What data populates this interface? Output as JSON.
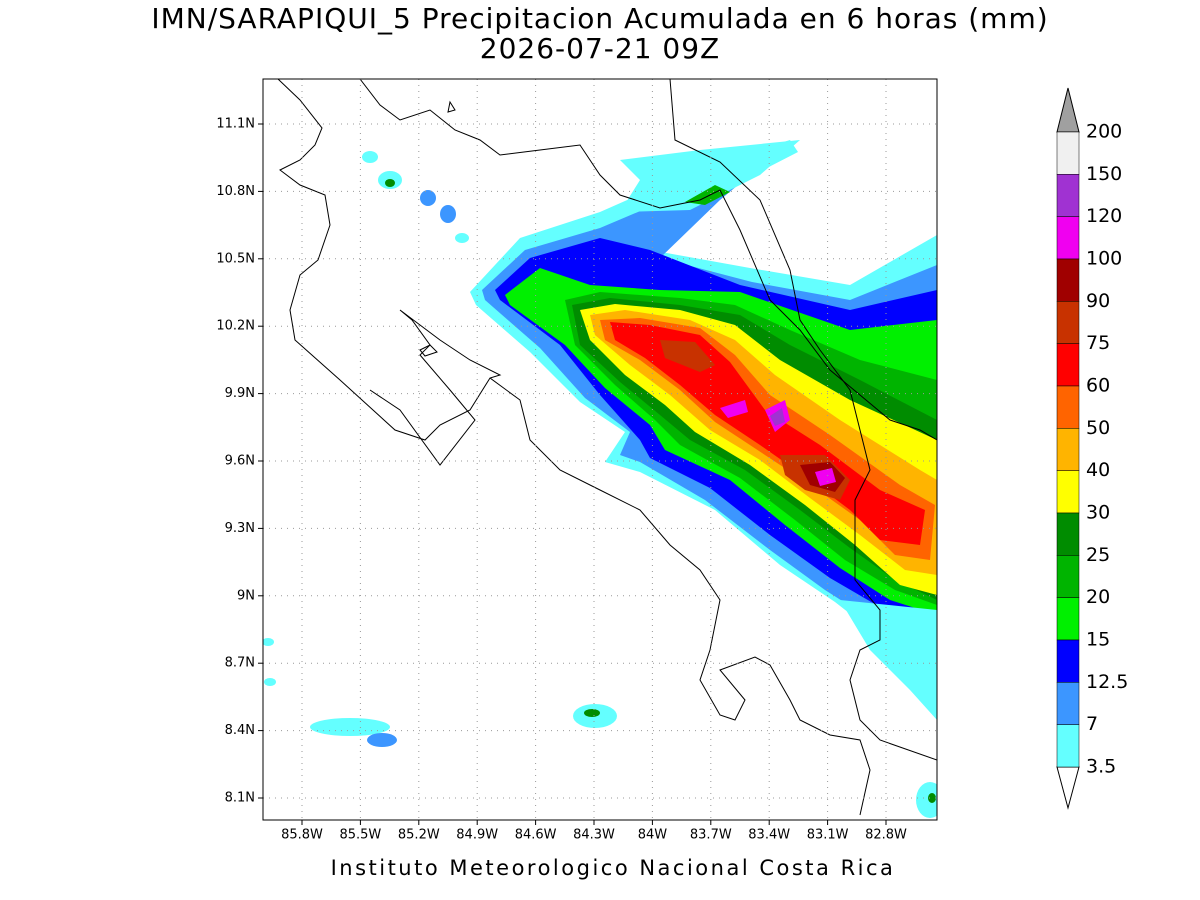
{
  "header": {
    "title": "IMN/SARAPIQUI_5 Precipitacion Acumulada en 6 horas (mm)",
    "subtitle": "2026-07-21 09Z"
  },
  "map": {
    "lat_labels": [
      "11.1N",
      "10.8N",
      "10.5N",
      "10.2N",
      "9.9N",
      "9.6N",
      "9.3N",
      "9N",
      "8.7N",
      "8.4N",
      "8.1N"
    ],
    "lon_labels": [
      "85.8W",
      "85.5W",
      "85.2W",
      "84.9W",
      "84.6W",
      "84.3W",
      "84W",
      "83.7W",
      "83.4W",
      "83.1W",
      "82.8W"
    ]
  },
  "colorbar": {
    "labels": [
      "200",
      "150",
      "120",
      "100",
      "90",
      "75",
      "60",
      "50",
      "40",
      "30",
      "25",
      "20",
      "15",
      "12.5",
      "7",
      "3.5"
    ],
    "colors": [
      "#f0f0f0",
      "#a032d2",
      "#f000f0",
      "#a00000",
      "#c83200",
      "#ff0000",
      "#ff6400",
      "#ffb400",
      "#ffff00",
      "#008c00",
      "#00b400",
      "#00f000",
      "#0000ff",
      "#3c96ff",
      "#64ffff"
    ]
  },
  "footer": {
    "text": "Instituto Meteorologico Nacional Costa Rica"
  }
}
